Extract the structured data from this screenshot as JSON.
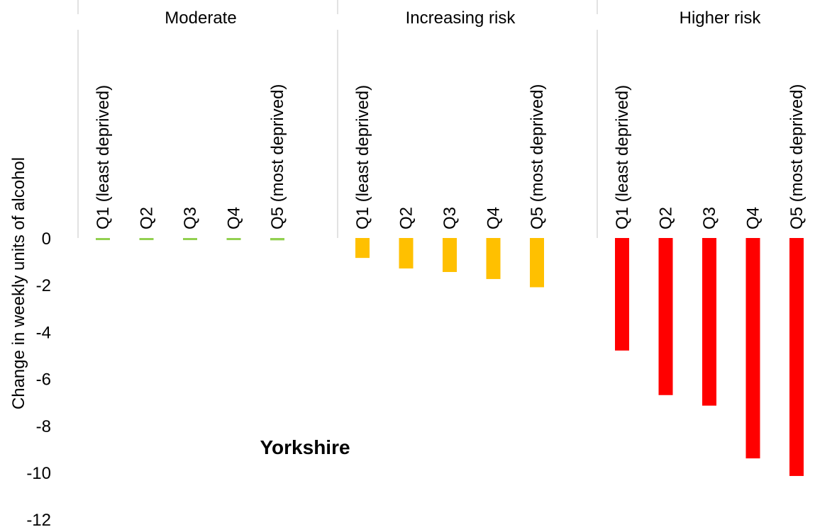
{
  "chart_data": {
    "type": "bar",
    "annotation": "Yorkshire",
    "ylabel": "Change in weekly units of alcohol",
    "ylim": [
      -12,
      0
    ],
    "yticks": [
      0,
      -2,
      -4,
      -6,
      -8,
      -10,
      -12
    ],
    "grid": false,
    "groups": [
      {
        "name": "Moderate",
        "color": "#92D050",
        "categories": [
          "Q1  (least deprived)",
          "Q2",
          "Q3",
          "Q4",
          "Q5  (most deprived)"
        ],
        "values": [
          -0.05,
          -0.05,
          -0.05,
          -0.06,
          -0.1
        ]
      },
      {
        "name": "Increasing risk",
        "color": "#FFC000",
        "categories": [
          "Q1  (least deprived)",
          "Q2",
          "Q3",
          "Q4",
          "Q5  (most deprived)"
        ],
        "values": [
          -0.85,
          -1.3,
          -1.45,
          -1.75,
          -2.1
        ]
      },
      {
        "name": "Higher risk",
        "color": "#FF0000",
        "categories": [
          "Q1  (least deprived)",
          "Q2",
          "Q3",
          "Q4",
          "Q5  (most deprived)"
        ],
        "values": [
          -4.8,
          -6.7,
          -7.15,
          -9.4,
          -10.15
        ]
      }
    ]
  }
}
